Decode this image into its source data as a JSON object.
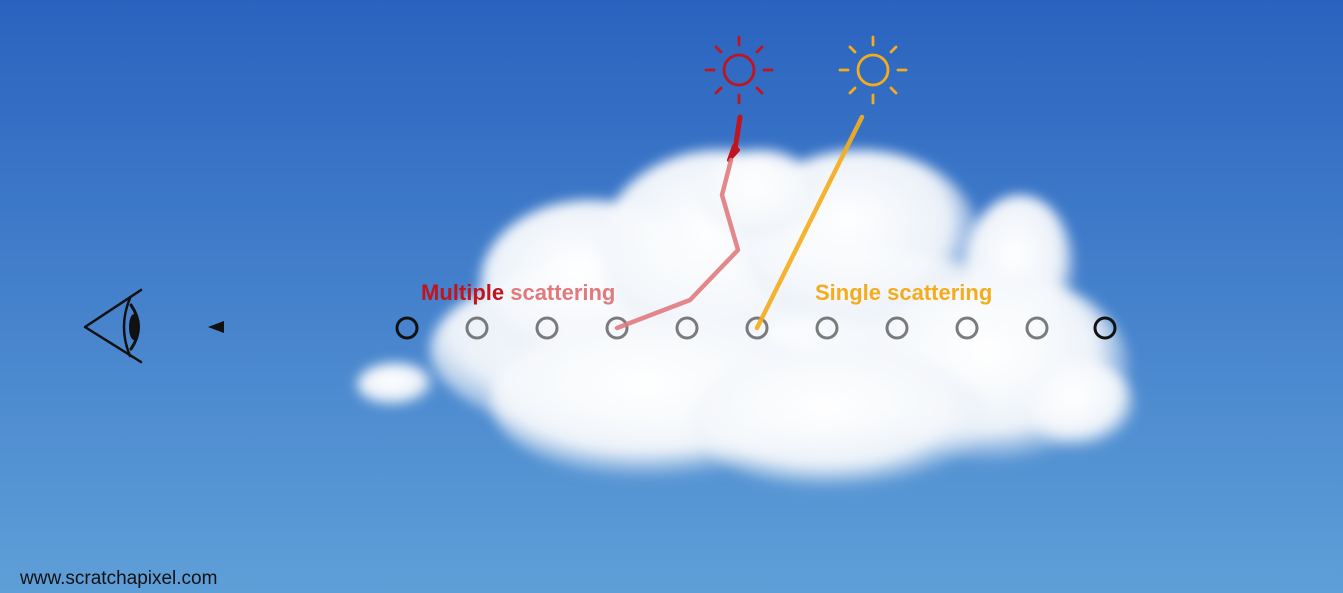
{
  "labels": {
    "multiple_bold": "Multiple",
    "multiple_rest": " scattering",
    "single": "Single scattering"
  },
  "credit": "www.scratchapixel.com",
  "colors": {
    "sky_top": "#2a63bf",
    "sky_bottom": "#5f9fd8",
    "multiple": "#c0141e",
    "multiple_faded": "#e07a7e",
    "single": "#f4ac1c",
    "ray": "#111111",
    "sample_point": "#505050",
    "credit_text": "#111111"
  },
  "icons": {
    "eye": "eye-icon",
    "sun_multiple": "sun-icon",
    "sun_single": "sun-icon",
    "cloud": "cloud-icon"
  },
  "sample_points": 11
}
